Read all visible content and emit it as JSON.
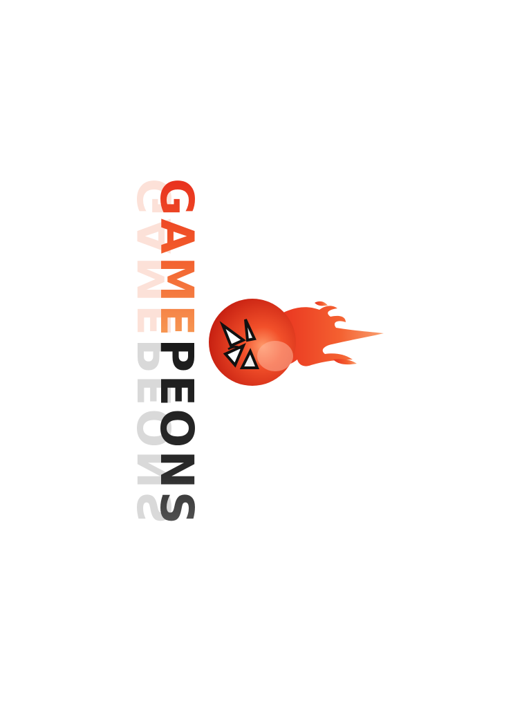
{
  "logo": {
    "word_game": "GAME",
    "word_peons": "PEONS",
    "brand_color_primary": "#e8301e",
    "brand_color_secondary": "#f79a55",
    "brand_color_dark": "#1a1a1a",
    "mascot_icon": "flaming-angry-ball-icon"
  }
}
